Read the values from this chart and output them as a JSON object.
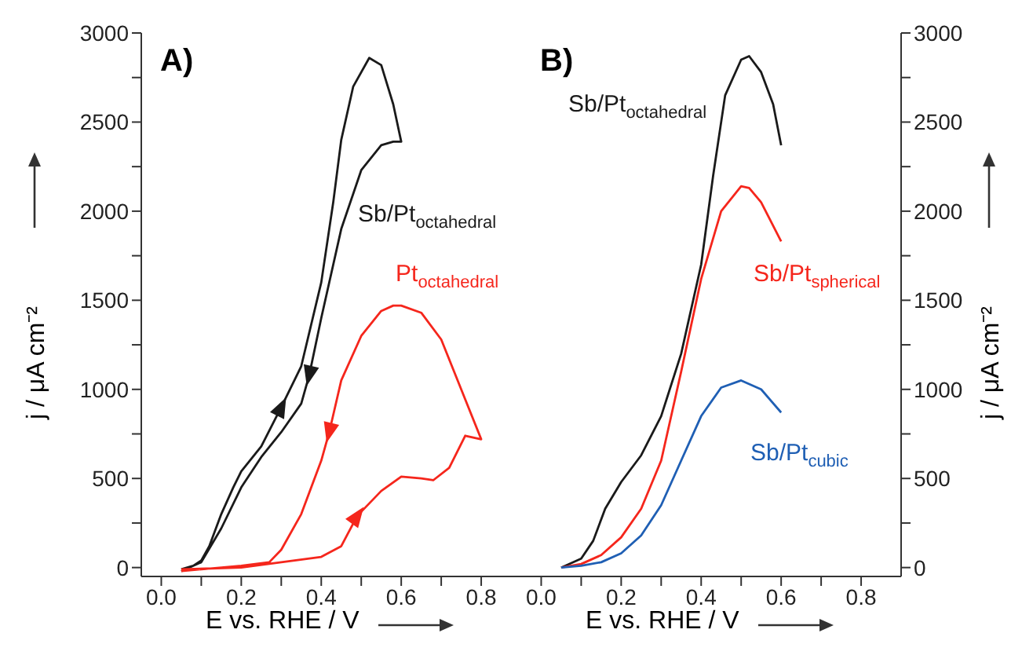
{
  "chart_data": [
    {
      "type": "line",
      "title": "A)",
      "xlabel": "E vs. RHE / V",
      "ylabel": "j / μA cm⁻²",
      "xlim": [
        -0.05,
        0.9
      ],
      "ylim": [
        -50,
        3000
      ],
      "xticks": [
        {
          "value": 0,
          "label": "0.0"
        },
        {
          "value": 0.1,
          "label": null
        },
        {
          "value": 0.2,
          "label": "0.2"
        },
        {
          "value": 0.3,
          "label": null
        },
        {
          "value": 0.4,
          "label": "0.4"
        },
        {
          "value": 0.5,
          "label": null
        },
        {
          "value": 0.6,
          "label": "0.6"
        },
        {
          "value": 0.7,
          "label": null
        },
        {
          "value": 0.8,
          "label": "0.8"
        }
      ],
      "yticks": [
        0,
        {
          "value": 250,
          "label": null
        },
        500,
        {
          "value": 750,
          "label": null
        },
        1000,
        {
          "value": 1250,
          "label": null
        },
        1500,
        {
          "value": 1750,
          "label": null
        },
        2000,
        {
          "value": 2250,
          "label": null
        },
        2500,
        {
          "value": 2750,
          "label": null
        },
        3000
      ],
      "series": [
        {
          "name": "Sb/Pt$_{octahedral}$",
          "color": "#1a1a1a",
          "x": [
            0.05,
            0.08,
            0.1,
            0.12,
            0.15,
            0.18,
            0.2,
            0.25,
            0.3,
            0.35,
            0.4,
            0.43,
            0.45,
            0.48,
            0.52,
            0.55,
            0.58,
            0.6,
            0.58,
            0.55,
            0.5,
            0.45,
            0.4,
            0.37,
            0.35,
            0.3,
            0.25,
            0.2,
            0.15,
            0.1,
            0.05
          ],
          "values": [
            -10,
            10,
            40,
            120,
            300,
            450,
            540,
            680,
            900,
            1130,
            1600,
            2050,
            2400,
            2700,
            2860,
            2820,
            2600,
            2390,
            2390,
            2370,
            2230,
            1900,
            1400,
            1080,
            920,
            760,
            620,
            450,
            220,
            30,
            -20
          ]
        },
        {
          "name": "Pt$_{octahedral}$",
          "color": "#f5261c",
          "x": [
            0.05,
            0.2,
            0.3,
            0.4,
            0.45,
            0.49,
            0.55,
            0.6,
            0.65,
            0.68,
            0.72,
            0.76,
            0.8,
            0.75,
            0.7,
            0.65,
            0.6,
            0.58,
            0.55,
            0.5,
            0.45,
            0.42,
            0.4,
            0.35,
            0.3,
            0.27,
            0.2,
            0.05
          ],
          "values": [
            -10,
            0,
            30,
            60,
            120,
            290,
            430,
            510,
            500,
            490,
            560,
            740,
            720,
            1000,
            1280,
            1430,
            1470,
            1470,
            1440,
            1300,
            1050,
            760,
            600,
            300,
            100,
            30,
            10,
            -20
          ]
        }
      ]
    },
    {
      "type": "line",
      "title": "B)",
      "xlabel": "E vs. RHE / V",
      "y2label": "j / μA cm⁻²",
      "xlim": [
        -0.05,
        0.9
      ],
      "y2lim": [
        -50,
        3000
      ],
      "xticks": [
        {
          "value": 0,
          "label": "0.0"
        },
        {
          "value": 0.1,
          "label": null
        },
        {
          "value": 0.2,
          "label": "0.2"
        },
        {
          "value": 0.3,
          "label": null
        },
        {
          "value": 0.4,
          "label": "0.4"
        },
        {
          "value": 0.5,
          "label": null
        },
        {
          "value": 0.6,
          "label": "0.6"
        },
        {
          "value": 0.7,
          "label": null
        },
        {
          "value": 0.8,
          "label": "0.8"
        }
      ],
      "y2ticks": [
        0,
        {
          "value": 250,
          "label": null
        },
        500,
        {
          "value": 750,
          "label": null
        },
        1000,
        {
          "value": 1250,
          "label": null
        },
        1500,
        {
          "value": 1750,
          "label": null
        },
        2000,
        {
          "value": 2250,
          "label": null
        },
        2500,
        {
          "value": 2750,
          "label": null
        },
        3000
      ],
      "series": [
        {
          "name": "Sb/Pt$_{octahedral}$",
          "color": "#1a1a1a",
          "axis": "y2",
          "x": [
            0.05,
            0.1,
            0.13,
            0.16,
            0.2,
            0.25,
            0.3,
            0.35,
            0.4,
            0.43,
            0.46,
            0.5,
            0.52,
            0.55,
            0.58,
            0.6
          ],
          "values": [
            0,
            50,
            150,
            330,
            480,
            630,
            850,
            1200,
            1700,
            2200,
            2650,
            2850,
            2870,
            2780,
            2600,
            2370
          ]
        },
        {
          "name": "Sb/Pt$_{spherical}$",
          "color": "#f5261c",
          "axis": "y2",
          "x": [
            0.05,
            0.1,
            0.15,
            0.2,
            0.25,
            0.3,
            0.35,
            0.4,
            0.45,
            0.5,
            0.52,
            0.55,
            0.6
          ],
          "values": [
            0,
            20,
            70,
            170,
            330,
            600,
            1100,
            1620,
            2000,
            2140,
            2130,
            2050,
            1830
          ]
        },
        {
          "name": "Sb/Pt$_{cubic}$",
          "color": "#1f5fb4",
          "axis": "y2",
          "x": [
            0.05,
            0.1,
            0.15,
            0.2,
            0.25,
            0.3,
            0.35,
            0.4,
            0.45,
            0.5,
            0.55,
            0.6
          ],
          "values": [
            0,
            10,
            30,
            80,
            180,
            350,
            600,
            850,
            1010,
            1050,
            1000,
            870
          ]
        }
      ]
    }
  ]
}
